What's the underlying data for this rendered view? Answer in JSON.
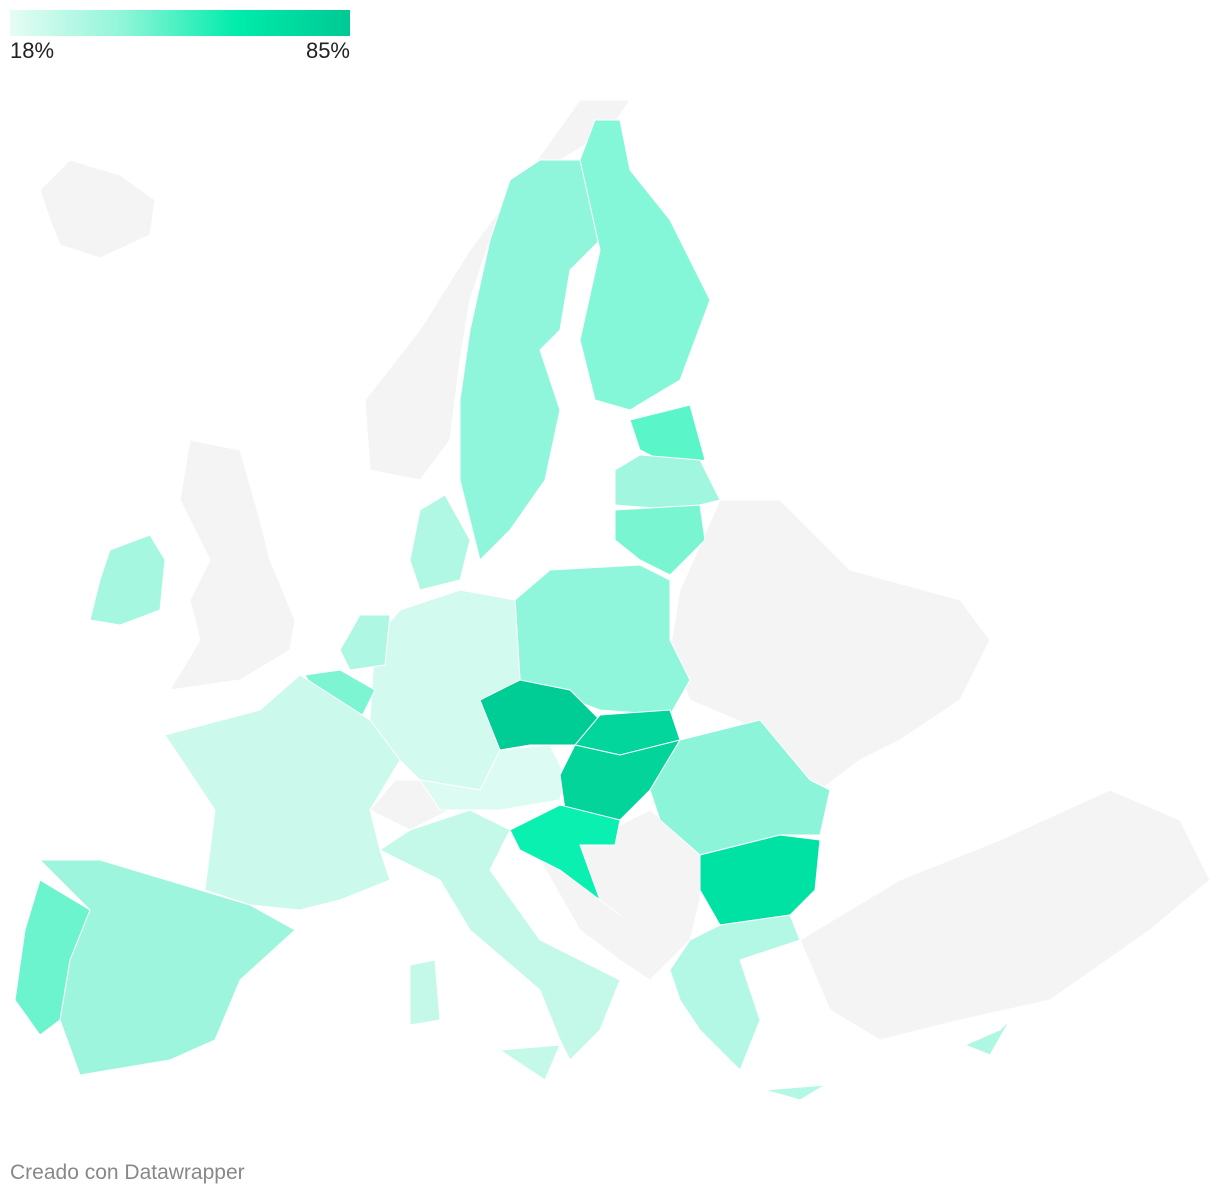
{
  "legend": {
    "min": {
      "value": 18,
      "label": "18%"
    },
    "max": {
      "value": 85,
      "label": "85%"
    },
    "colors": [
      "#e6fcf5",
      "#8ff5d8",
      "#00ecab",
      "#00c994"
    ]
  },
  "footer": "Creado con Datawrapper"
}
